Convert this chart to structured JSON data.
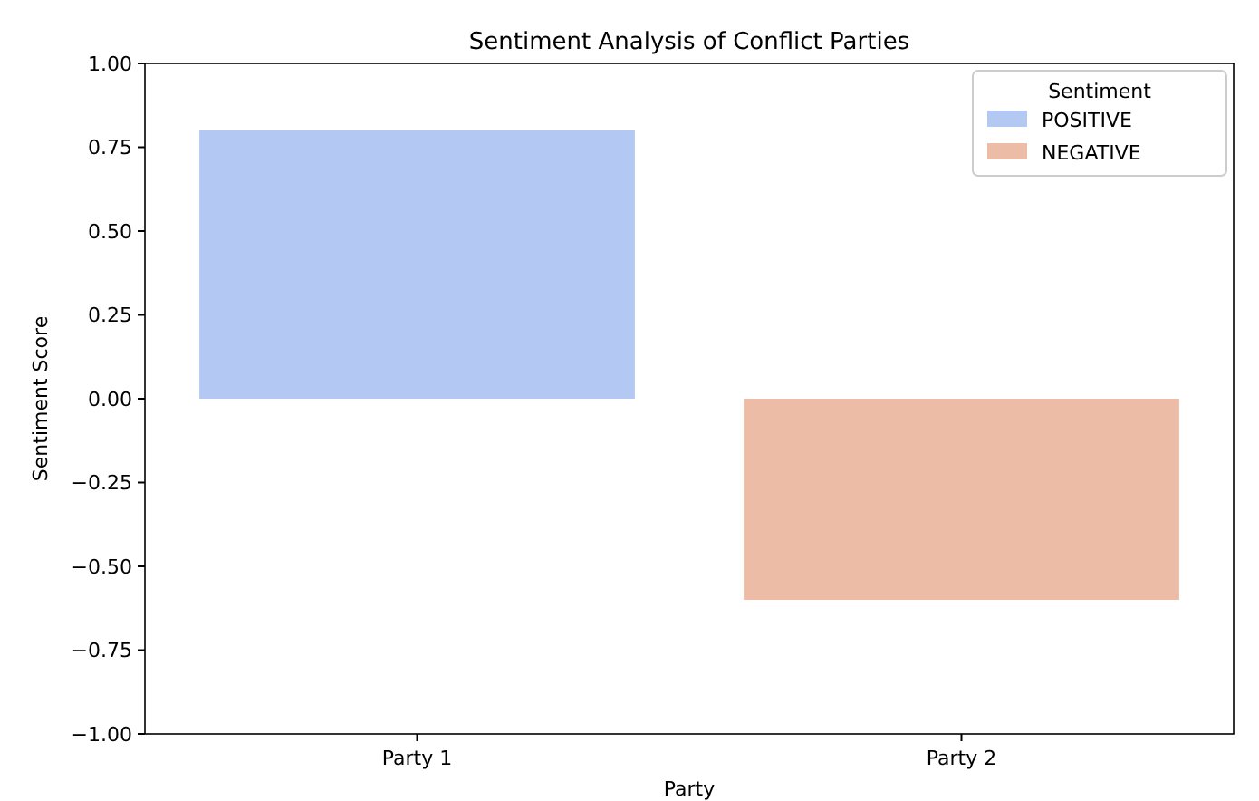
{
  "chart_data": {
    "type": "bar",
    "title": "Sentiment Analysis of Conflict Parties",
    "xlabel": "Party",
    "ylabel": "Sentiment Score",
    "legend_title": "Sentiment",
    "categories": [
      "Party 1",
      "Party 2"
    ],
    "series": [
      {
        "name": "POSITIVE",
        "color": "#b3c9f3",
        "values": [
          0.8,
          null
        ]
      },
      {
        "name": "NEGATIVE",
        "color": "#ecbca6",
        "values": [
          null,
          -0.6
        ]
      }
    ],
    "ylim": [
      -1,
      1
    ],
    "yticks": [
      {
        "value": -1,
        "label": "−1.00"
      },
      {
        "value": -0.75,
        "label": "−0.75"
      },
      {
        "value": -0.5,
        "label": "−0.50"
      },
      {
        "value": -0.25,
        "label": "−0.25"
      },
      {
        "value": 0,
        "label": "0.00"
      },
      {
        "value": 0.25,
        "label": "0.25"
      },
      {
        "value": 0.5,
        "label": "0.50"
      },
      {
        "value": 0.75,
        "label": "0.75"
      },
      {
        "value": 1,
        "label": "1.00"
      }
    ],
    "legend": "top right",
    "grid": false
  }
}
